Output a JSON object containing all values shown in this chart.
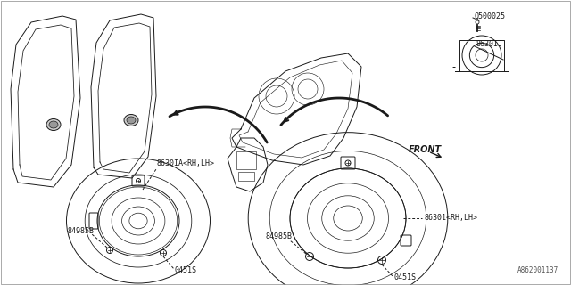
{
  "bg_color": "#ffffff",
  "line_color": "#1a1a1a",
  "label_color": "#1a1a1a",
  "diagram_id": "A862001137",
  "labels": {
    "part_num_top": "Q500025",
    "part_8630j": "8630IJ",
    "part_8630A": "8630IA<RH,LH>",
    "part_84985B_left": "84985B",
    "part_84985B_right": "84985B",
    "part_0451S_left": "0451S",
    "part_0451S_right": "0451S",
    "part_86301": "86301<RH,LH>",
    "front_label": "FRONT"
  }
}
